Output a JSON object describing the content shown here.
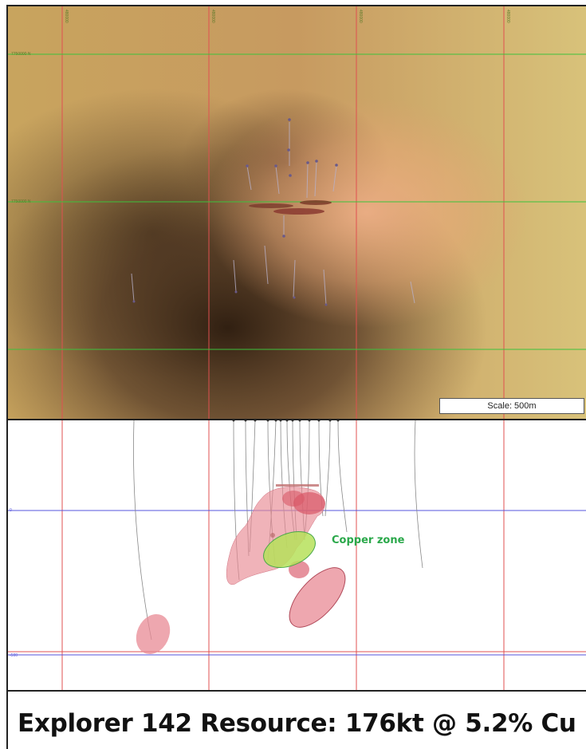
{
  "plan_view": {
    "scale_label": "Scale: 500m",
    "northing_labels": [
      "7750000 N",
      "7750000 N"
    ],
    "easting_labels": [
      "480000",
      "480000",
      "480000",
      "480000"
    ]
  },
  "section_view": {
    "zone_label": "Copper zone",
    "rl_labels": [
      "0",
      "-500"
    ]
  },
  "footer": {
    "resource_text": "Explorer 142 Resource:  176kt @ 5.2% Cu"
  },
  "colors": {
    "grid_red": "#e05050",
    "grid_green": "#3cc23c",
    "grid_blue": "#5555dd",
    "ore_pink": "#e88a94",
    "copper_green": "#b6e05a",
    "copper_label": "#2aa84a"
  }
}
